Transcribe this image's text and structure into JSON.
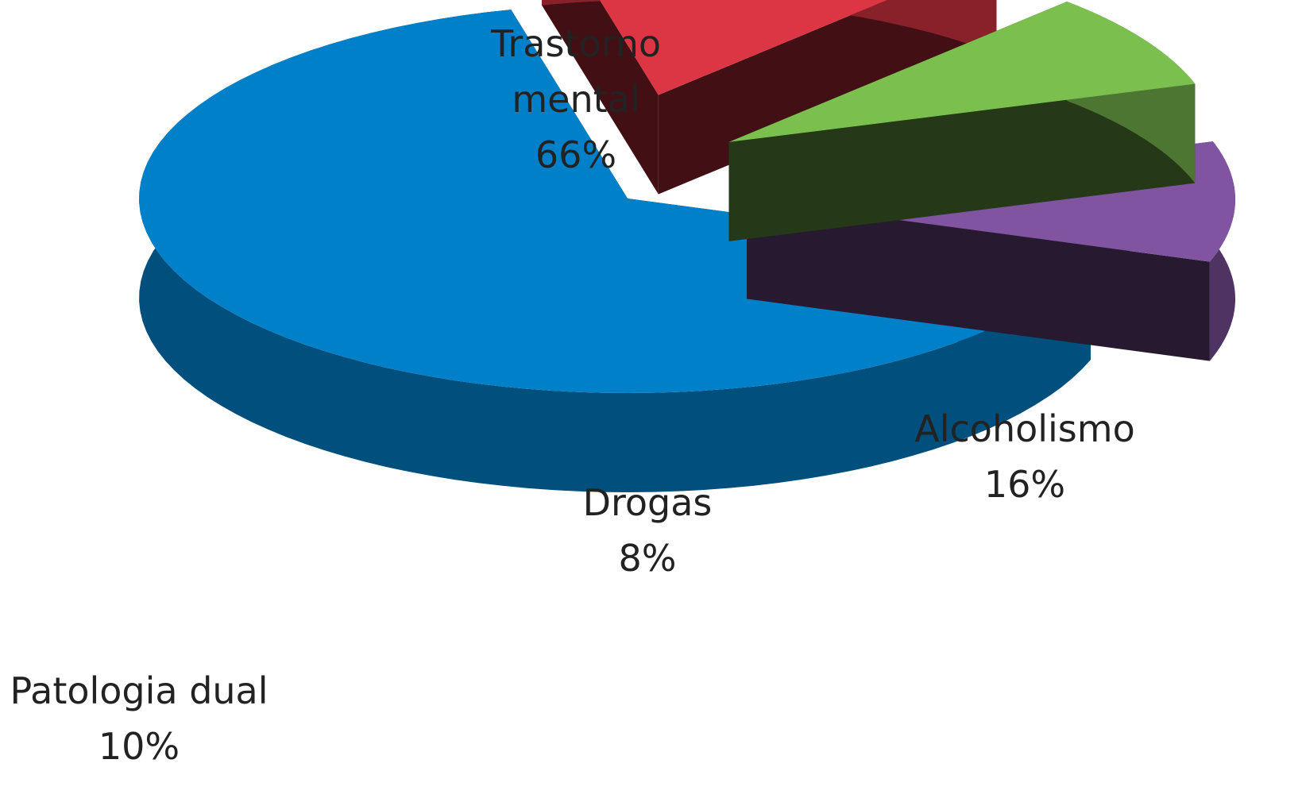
{
  "chart_data": {
    "type": "pie3d",
    "categories": [
      "Trastorno mental",
      "Alcoholismo",
      "Drogas",
      "Patologia dual"
    ],
    "values": [
      66,
      16,
      8,
      10
    ],
    "value_labels": [
      "66%",
      "16%",
      "8%",
      "10%"
    ],
    "colors": [
      "#0080c8",
      "#dc3644",
      "#7bbf4f",
      "#8054a0"
    ]
  }
}
